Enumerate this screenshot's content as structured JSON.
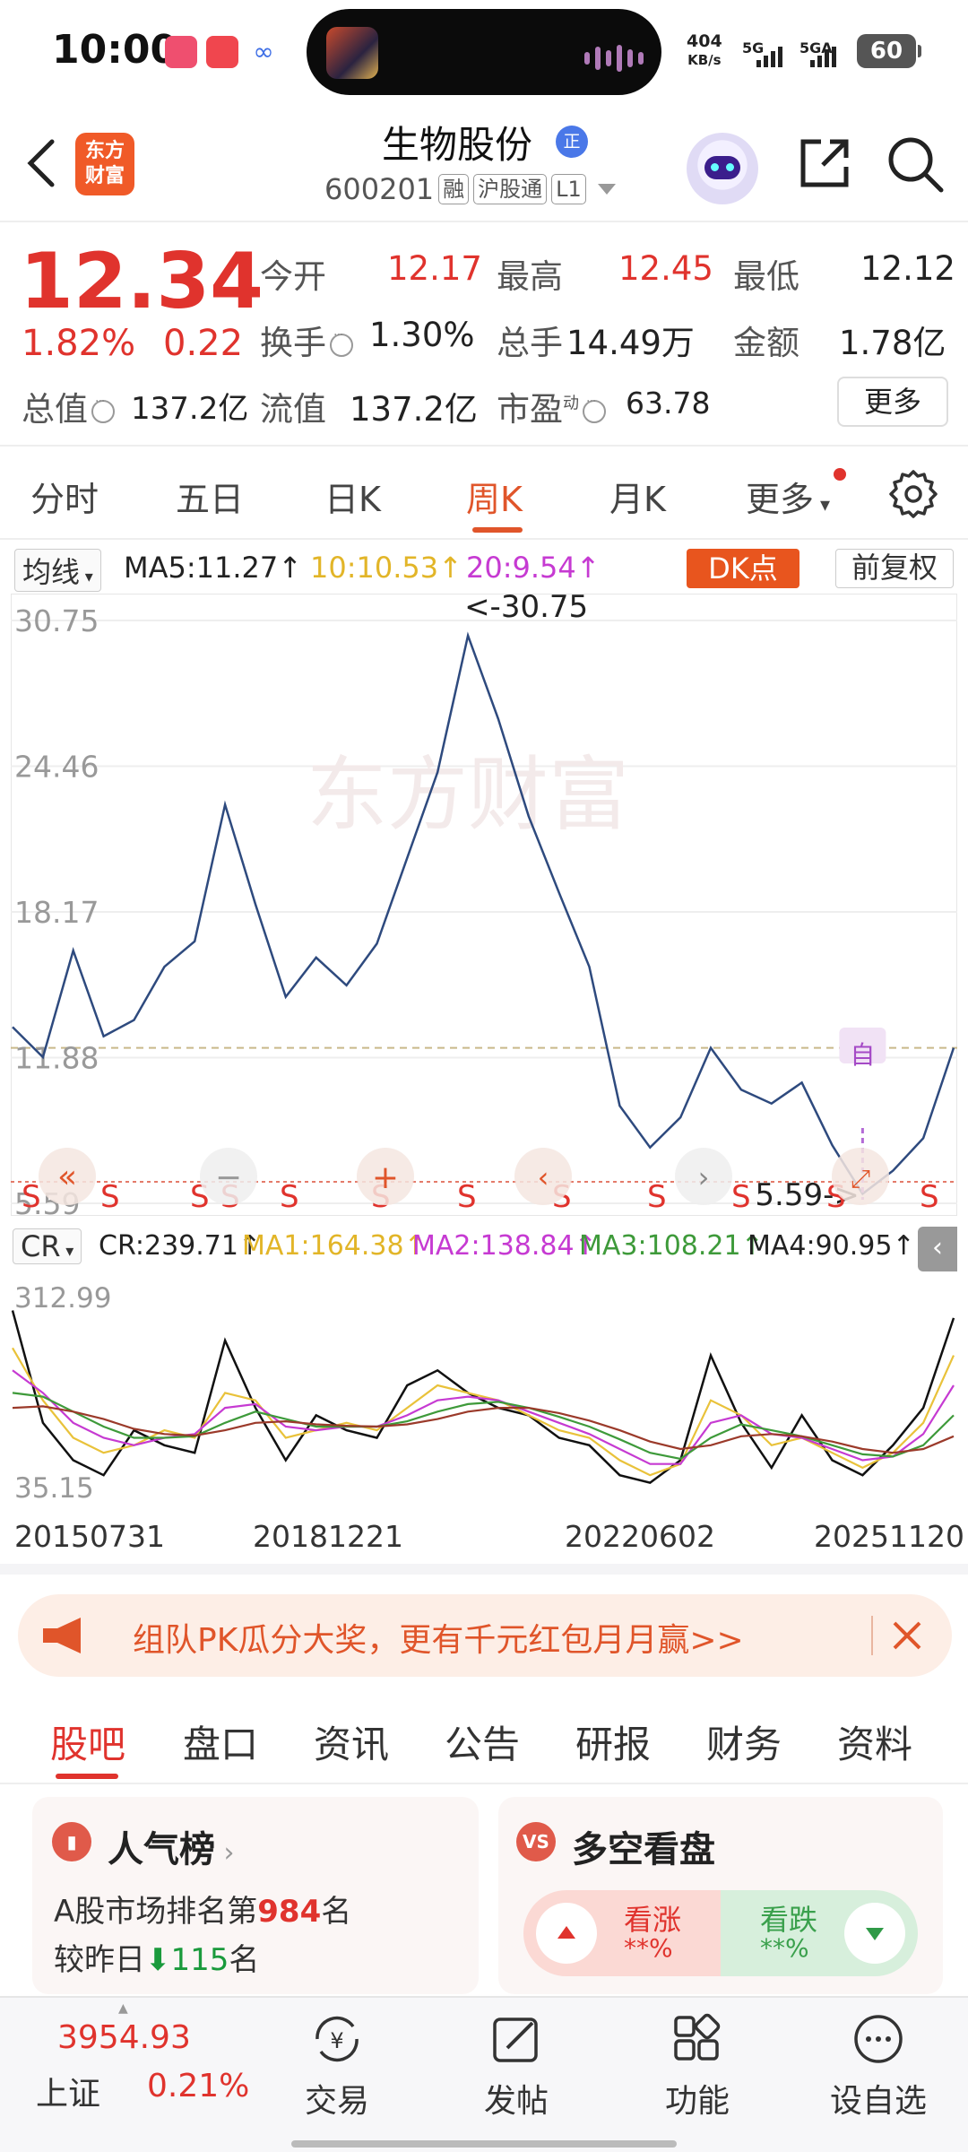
{
  "status_bar": {
    "time": "10:00",
    "net_speed": "404",
    "net_unit": "KB/s",
    "sig1": "5G",
    "sig2": "5GA",
    "battery": "60"
  },
  "header": {
    "logo_line1": "东方",
    "logo_line2": "财富",
    "stock_name": "生物股份",
    "verify_badge": "正",
    "code": "600201",
    "tags": [
      "融",
      "沪股通",
      "L1"
    ]
  },
  "quote": {
    "price": "12.34",
    "change_pct": "1.82%",
    "change": "0.22",
    "items": [
      {
        "label": "今开",
        "value": "12.17"
      },
      {
        "label": "最高",
        "value": "12.45"
      },
      {
        "label": "最低",
        "value": "12.12"
      },
      {
        "label": "换手",
        "value": "1.30%"
      },
      {
        "label": "总手",
        "value": "14.49万"
      },
      {
        "label": "金额",
        "value": "1.78亿"
      },
      {
        "label": "总值",
        "value": "137.2亿"
      },
      {
        "label": "流值",
        "value": "137.2亿"
      },
      {
        "label": "市盈",
        "value": "63.78"
      }
    ],
    "pe_sup": "动",
    "more": "更多"
  },
  "period_tabs": [
    "分时",
    "五日",
    "日K",
    "周K",
    "月K",
    "更多"
  ],
  "ma_bar": {
    "selector": "均线",
    "ma5": "MA5:11.27↑",
    "ma10": "10:10.53↑",
    "ma20": "20:9.54↑",
    "dk": "DK点",
    "adjust": "前复权"
  },
  "chart_data": [
    {
      "type": "line",
      "title": "",
      "series": [
        {
          "values": [
            13.2,
            11.9,
            16.5,
            12.8,
            13.5,
            15.8,
            16.9,
            22.8,
            18.5,
            14.5,
            16.2,
            15.0,
            16.8,
            20.5,
            24.2,
            30.1,
            26.5,
            22.3,
            19.0,
            15.8,
            9.8,
            8.0,
            9.3,
            12.3,
            10.5,
            9.9,
            10.8,
            8.1,
            6.0,
            7.0,
            8.4,
            12.3
          ]
        }
      ],
      "y_ticks": [
        "30.75",
        "24.46",
        "18.17",
        "11.88",
        "5.59"
      ],
      "ylim": [
        5.59,
        30.75
      ],
      "annotations": {
        "high": "<-30.75",
        "low": "5.59->",
        "self_select": "自"
      },
      "sell_marker": "S"
    },
    {
      "type": "line",
      "title": "",
      "series": [
        {
          "name": "CR",
          "values": [
            280,
            130,
            80,
            60,
            120,
            100,
            90,
            240,
            150,
            80,
            140,
            120,
            110,
            180,
            200,
            170,
            150,
            140,
            110,
            100,
            60,
            50,
            80,
            220,
            130,
            70,
            140,
            80,
            60,
            100,
            150,
            270
          ]
        },
        {
          "name": "MA1",
          "values": [
            230,
            160,
            110,
            90,
            100,
            120,
            110,
            170,
            160,
            110,
            120,
            130,
            120,
            150,
            180,
            170,
            160,
            140,
            120,
            110,
            80,
            60,
            75,
            160,
            140,
            100,
            110,
            90,
            70,
            90,
            130,
            220
          ]
        },
        {
          "name": "MA2",
          "values": [
            200,
            170,
            130,
            110,
            100,
            110,
            115,
            150,
            155,
            125,
            120,
            125,
            125,
            140,
            160,
            165,
            160,
            145,
            130,
            115,
            95,
            75,
            75,
            130,
            140,
            115,
            110,
            95,
            80,
            85,
            115,
            180
          ]
        },
        {
          "name": "MA3",
          "values": [
            170,
            165,
            145,
            125,
            110,
            110,
            112,
            130,
            145,
            135,
            125,
            125,
            125,
            132,
            145,
            155,
            158,
            150,
            138,
            125,
            108,
            90,
            82,
            110,
            128,
            120,
            112,
            100,
            88,
            85,
            100,
            140
          ]
        },
        {
          "name": "MA4",
          "values": [
            150,
            152,
            145,
            135,
            122,
            115,
            113,
            120,
            130,
            132,
            128,
            126,
            125,
            128,
            135,
            145,
            150,
            150,
            143,
            133,
            120,
            105,
            95,
            100,
            112,
            115,
            112,
            105,
            95,
            90,
            95,
            112
          ]
        }
      ],
      "indicator": "CR",
      "legend": [
        "CR:239.71↑",
        "MA1:164.38↑",
        "MA2:138.84↑",
        "MA3:108.21↑",
        "MA4:90.95↑"
      ],
      "y_ticks": [
        "312.99",
        "35.15"
      ],
      "ylim": [
        35.15,
        312.99
      ],
      "x_ticks": [
        "20150731",
        "20181221",
        "20220602",
        "20251120"
      ]
    }
  ],
  "banner": {
    "text": "组队PK瓜分大奖，更有千元红包月月赢>>"
  },
  "section_tabs": [
    "股吧",
    "盘口",
    "资讯",
    "公告",
    "研报",
    "财务",
    "资料"
  ],
  "card_popularity": {
    "title": "人气榜",
    "line1_prefix": "A股市场排名第",
    "rank": "984",
    "line1_suffix": "名",
    "line2_prefix": "较昨日",
    "delta": "115",
    "line2_suffix": "名"
  },
  "card_vote": {
    "title": "多空看盘",
    "badge": "VS",
    "bull_label": "看涨",
    "bull_value": "**%",
    "bear_label": "看跌",
    "bear_value": "**%"
  },
  "bottom_nav": {
    "index_value": "3954.93",
    "index_name": "上证",
    "index_change": "0.21%",
    "items": [
      "交易",
      "发帖",
      "功能",
      "设自选"
    ]
  },
  "colors": {
    "up": "#e0332d",
    "down": "#1a9a3c",
    "accent": "#e0552a",
    "price_line": "#2e4a7e",
    "ma1": "#e9c23a",
    "ma2": "#c63ad2",
    "ma3": "#3e9a3a",
    "ma4": "#9b3a2a",
    "cr": "#111111"
  }
}
